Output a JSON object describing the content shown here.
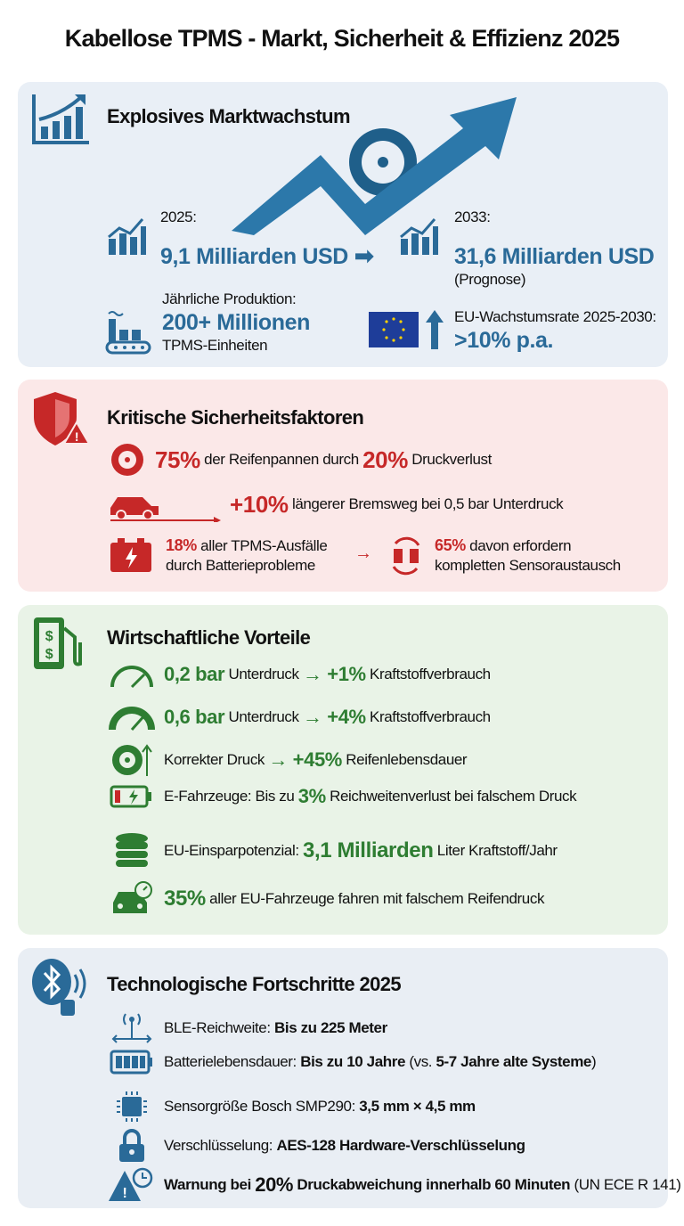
{
  "title": "Kabellose TPMS - Markt, Sicherheit & Effizienz 2025",
  "colors": {
    "blue": "#2a6a98",
    "red": "#c62828",
    "green": "#2e7d32"
  },
  "market": {
    "title": "Explosives Marktwachstum",
    "y2025_label": "2025:",
    "y2025_value": "9,1 Milliarden USD",
    "y2033_label": "2033:",
    "y2033_value": "31,6 Milliarden USD",
    "y2033_note": "(Prognose)",
    "production_label": "Jährliche Produktion:",
    "production_value": "200+ Millionen",
    "production_unit": "TPMS-Einheiten",
    "eu_label": "EU-Wachstumsrate 2025-2030:",
    "eu_value": ">10% p.a.",
    "icons": [
      "bar-chart-growth-icon",
      "rising-arrow-tire-icon",
      "factory-icon",
      "eu-flag-icon",
      "arrow-up-icon"
    ]
  },
  "safety": {
    "title": "Kritische Sicherheitsfaktoren",
    "rows": [
      {
        "icon": "flat-tire-icon",
        "segments": [
          {
            "t": "75%",
            "s": "br"
          },
          {
            "t": " der Reifenpannen durch ",
            "s": "n"
          },
          {
            "t": "20%",
            "s": "br"
          },
          {
            "t": " Druckverlust",
            "s": "n"
          }
        ]
      },
      {
        "icon": "car-braking-icon",
        "segments": [
          {
            "t": "+10%",
            "s": "br"
          },
          {
            "t": " längerer Bremsweg bei 0,5 bar Unterdruck",
            "s": "n"
          }
        ]
      }
    ],
    "battery": {
      "value": "18%",
      "text1": " aller TPMS-Ausfälle",
      "text2": "durch Batterieprobleme"
    },
    "replace": {
      "value": "65%",
      "text1": " davon erfordern",
      "text2": "kompletten Sensoraustausch"
    }
  },
  "economy": {
    "title": "Wirtschaftliche Vorteile",
    "rows": [
      {
        "icon": "gauge-low-icon",
        "segments": [
          {
            "t": "0,2 bar",
            "s": "bgs"
          },
          {
            "t": " Unterdruck ",
            "s": "n"
          },
          {
            "t": "→ +1%",
            "s": "bgs"
          },
          {
            "t": " Kraftstoffverbrauch",
            "s": "n"
          }
        ]
      },
      {
        "icon": "gauge-high-icon",
        "segments": [
          {
            "t": "0,6 bar",
            "s": "bgs"
          },
          {
            "t": " Unterdruck ",
            "s": "n"
          },
          {
            "t": "→ +4%",
            "s": "bgs"
          },
          {
            "t": " Kraftstoffverbrauch",
            "s": "n"
          }
        ]
      },
      {
        "icon": "tire-up-icon",
        "segments": [
          {
            "t": "Korrekter Druck ",
            "s": "n"
          },
          {
            "t": "→ +45%",
            "s": "bgs"
          },
          {
            "t": " Reifenlebensdauer",
            "s": "n"
          }
        ]
      },
      {
        "icon": "ev-battery-icon",
        "segments": [
          {
            "t": "E-Fahrzeuge: Bis zu ",
            "s": "n"
          },
          {
            "t": "3%",
            "s": "bgs"
          },
          {
            "t": " Reichweitenverlust bei falschem Druck",
            "s": "n"
          }
        ]
      },
      {
        "icon": "coins-stack-icon",
        "segments": [
          {
            "t": "EU-Einsparpotenzial: ",
            "s": "n"
          },
          {
            "t": "3,1 Milliarden",
            "s": "bgm"
          },
          {
            "t": " Liter Kraftstoff/Jahr",
            "s": "n"
          }
        ]
      },
      {
        "icon": "car-gauge-icon",
        "segments": [
          {
            "t": "35%",
            "s": "bgm"
          },
          {
            "t": " aller EU-Fahrzeuge fahren mit falschem Reifendruck",
            "s": "n"
          }
        ]
      }
    ]
  },
  "tech": {
    "title": "Technologische Fortschritte 2025",
    "rows": [
      {
        "icon": "antenna-range-icon",
        "segments": [
          {
            "t": "BLE-Reichweite: ",
            "s": "n"
          },
          {
            "t": "Bis zu 225 Meter",
            "s": "b"
          }
        ]
      },
      {
        "icon": "battery-full-icon",
        "segments": [
          {
            "t": "Batterielebensdauer: ",
            "s": "n"
          },
          {
            "t": "Bis zu 10 Jahre",
            "s": "b"
          },
          {
            "t": " (vs. ",
            "s": "n"
          },
          {
            "t": "5-7 Jahre alte Systeme",
            "s": "b"
          },
          {
            "t": ")",
            "s": "n"
          }
        ]
      },
      {
        "icon": "chip-icon",
        "segments": [
          {
            "t": "Sensorgröße Bosch SMP290: ",
            "s": "n"
          },
          {
            "t": "3,5 mm × 4,5 mm",
            "s": "b"
          }
        ]
      },
      {
        "icon": "lock-icon",
        "segments": [
          {
            "t": "Verschlüsselung: ",
            "s": "n"
          },
          {
            "t": "AES-128 Hardware-Verschlüsselung",
            "s": "b"
          }
        ]
      },
      {
        "icon": "warning-clock-icon",
        "segments": [
          {
            "t": "Warnung bei ",
            "s": "b"
          },
          {
            "t": "20%",
            "s": "big20"
          },
          {
            "t": " Druckabweichung innerhalb 60 Minuten",
            "s": "b"
          },
          {
            "t": " (UN ECE R 141)",
            "s": "n"
          }
        ]
      }
    ]
  }
}
